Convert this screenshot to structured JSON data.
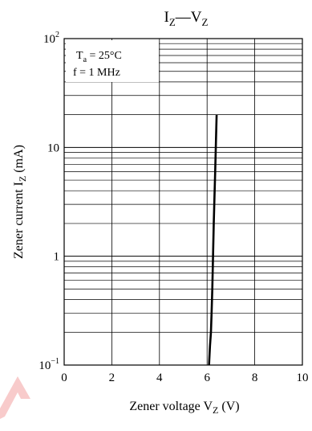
{
  "chart_data": {
    "type": "line",
    "title": {
      "main": "I",
      "sub1": "Z",
      "sep": "—V",
      "sub2": "Z"
    },
    "xlabel": {
      "pre": "Zener voltage  V",
      "sub": "Z",
      "post": "  (V)"
    },
    "ylabel": {
      "pre": "Zener current  I",
      "sub": "Z",
      "post": "  (mA)"
    },
    "x_ticks": [
      "0",
      "2",
      "4",
      "6",
      "8",
      "10"
    ],
    "y_ticks": [
      {
        "base": "10",
        "exp": "2",
        "value": 100
      },
      {
        "base": "10",
        "exp": "",
        "value": 10
      },
      {
        "base": "1",
        "exp": "",
        "value": 1
      },
      {
        "base": "10",
        "exp": "−1",
        "value": 0.1
      }
    ],
    "xlim": [
      0,
      10
    ],
    "ylim": [
      0.1,
      100
    ],
    "y_scale": "log",
    "grid": true,
    "annotation": {
      "line1_pre": "T",
      "line1_sub": "a",
      "line1_post": " = 25°C",
      "line2": "f = 1 MHz"
    },
    "series": [
      {
        "x": [
          6.08,
          6.12,
          6.16,
          6.19,
          6.22,
          6.25,
          6.28,
          6.31,
          6.34,
          6.37,
          6.4
        ],
        "y": [
          0.1,
          0.15,
          0.2,
          0.3,
          0.5,
          1,
          2,
          3.5,
          6,
          11,
          20
        ]
      }
    ]
  },
  "colors": {
    "line": "#000000",
    "grid": "#000000",
    "watermark": "#f2a0a0"
  }
}
